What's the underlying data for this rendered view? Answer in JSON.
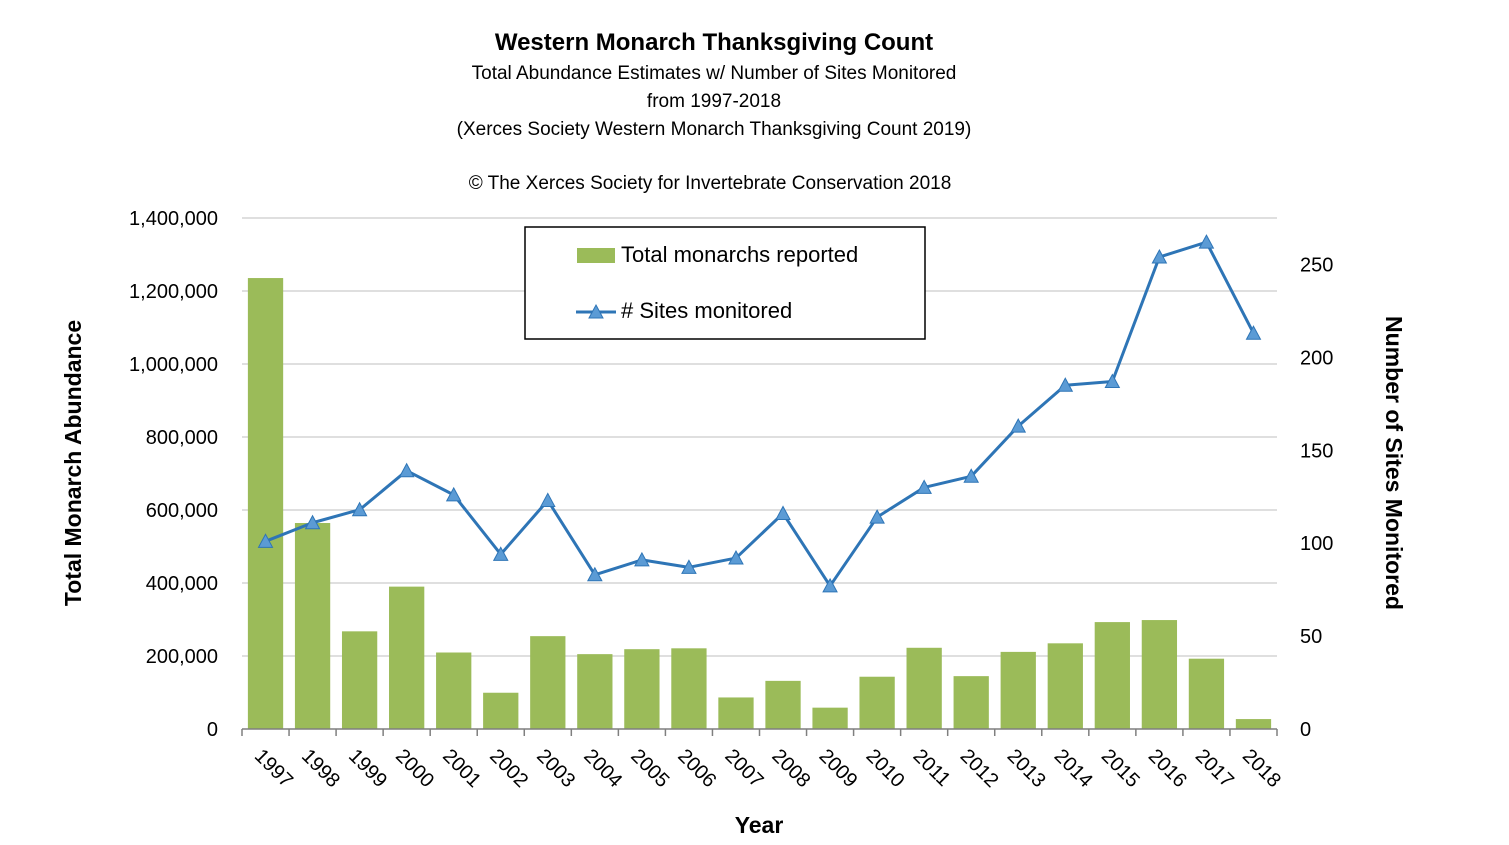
{
  "chart_data": {
    "type": "bar+line",
    "title": "Western Monarch Thanksgiving Count",
    "subtitle_lines": [
      "Total Abundance Estimates w/ Number of Sites Monitored",
      "from 1997-2018",
      "(Xerces Society Western Monarch Thanksgiving Count 2019)"
    ],
    "copyright": "© The Xerces Society for Invertebrate Conservation 2018",
    "xlabel": "Year",
    "ylabel_left": "Total Monarch Abundance",
    "ylabel_right": "Number of Sites Monitored",
    "categories": [
      "1997",
      "1998",
      "1999",
      "2000",
      "2001",
      "2002",
      "2003",
      "2004",
      "2005",
      "2006",
      "2007",
      "2008",
      "2009",
      "2010",
      "2011",
      "2012",
      "2013",
      "2014",
      "2015",
      "2016",
      "2017",
      "2018"
    ],
    "y_left_ticks": [
      "0",
      "200,000",
      "400,000",
      "600,000",
      "800,000",
      "1,000,000",
      "1,200,000",
      "1,400,000"
    ],
    "y_left_range": [
      0,
      1400000
    ],
    "y_right_ticks": [
      "0",
      "50",
      "100",
      "150",
      "200",
      "250"
    ],
    "y_right_range": [
      0,
      275
    ],
    "grid": true,
    "legend_position": "top-center",
    "series": [
      {
        "name": "Total monarchs reported",
        "type": "bar",
        "axis": "left",
        "color": "#9BBB59",
        "values": [
          1235490,
          564349,
          267574,
          390057,
          209570,
          99353,
          254378,
          205085,
          218679,
          221058,
          86437,
          131889,
          58468,
          143204,
          222525,
          144812,
          211275,
          234731,
          292888,
          298464,
          192624,
          27218
        ]
      },
      {
        "name": "# Sites monitored",
        "type": "line",
        "axis": "right",
        "color": "#2E75B6",
        "marker": "triangle",
        "marker_color": "#5B9BD5",
        "values": [
          101,
          111,
          118,
          139,
          126,
          94,
          123,
          83,
          91,
          87,
          92,
          116,
          77,
          114,
          130,
          136,
          163,
          185,
          187,
          254,
          262,
          213
        ]
      }
    ]
  }
}
